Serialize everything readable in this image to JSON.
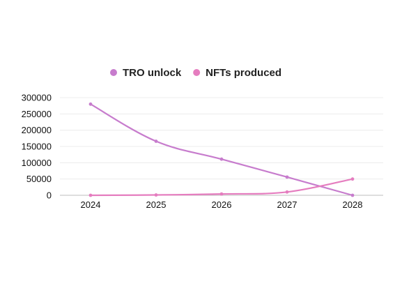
{
  "chart_data": {
    "type": "line",
    "title": "",
    "xlabel": "",
    "ylabel": "",
    "x": [
      "2024",
      "2025",
      "2026",
      "2027",
      "2028"
    ],
    "series": [
      {
        "name": "TRO unlock",
        "color": "#c77ccd",
        "values": [
          280000,
          166000,
          111000,
          56000,
          0
        ]
      },
      {
        "name": "NFTs produced",
        "color": "#e57dbf",
        "values": [
          0,
          1000,
          4000,
          10000,
          50000
        ]
      }
    ],
    "yticks": [
      "0",
      "50000",
      "100000",
      "150000",
      "200000",
      "250000",
      "300000"
    ],
    "ylim": [
      0,
      300000
    ],
    "grid": "horizontal",
    "legend_position": "top-center"
  }
}
